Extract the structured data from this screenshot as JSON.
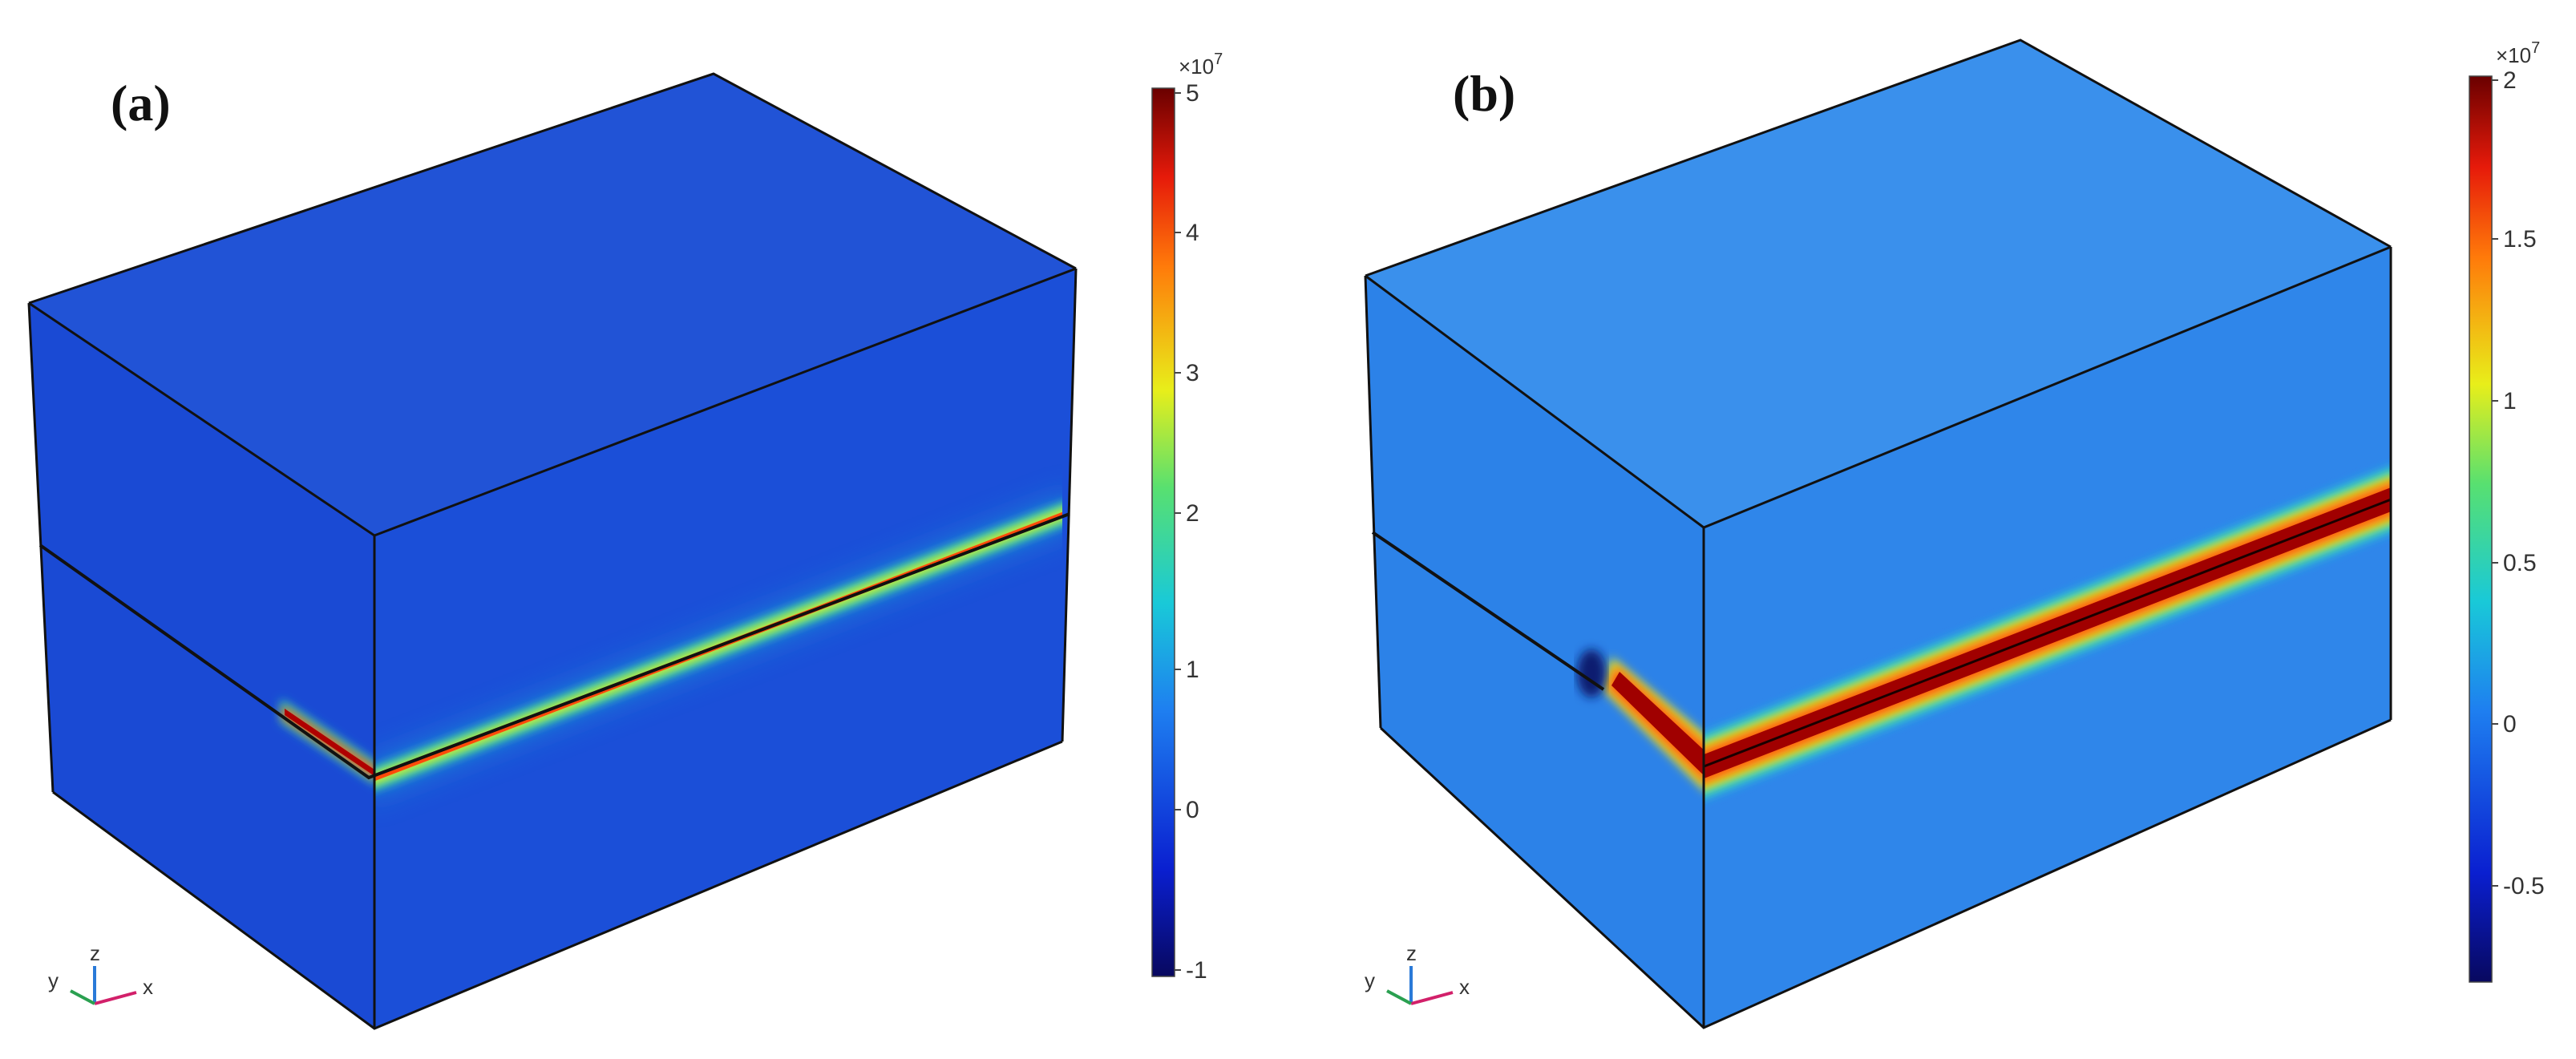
{
  "panels": [
    {
      "id": "a",
      "label": "(a)",
      "colorbar": {
        "multiplier": "×10",
        "exponent": "7",
        "ticks": [
          "5",
          "4",
          "3",
          "2",
          "1",
          "0",
          "-1"
        ]
      },
      "triad": {
        "x": "x",
        "y": "y",
        "z": "z"
      }
    },
    {
      "id": "b",
      "label": "(b)",
      "colorbar": {
        "multiplier": "×10",
        "exponent": "7",
        "ticks": [
          "2",
          "1.5",
          "1",
          "0.5",
          "0",
          "-0.5"
        ]
      },
      "triad": {
        "x": "x",
        "y": "y",
        "z": "z"
      }
    }
  ],
  "colors": {
    "background_a": "#1b4fd8",
    "background_b": "#2f86ea",
    "band_core": "#7a0000",
    "edge": "#111111"
  }
}
